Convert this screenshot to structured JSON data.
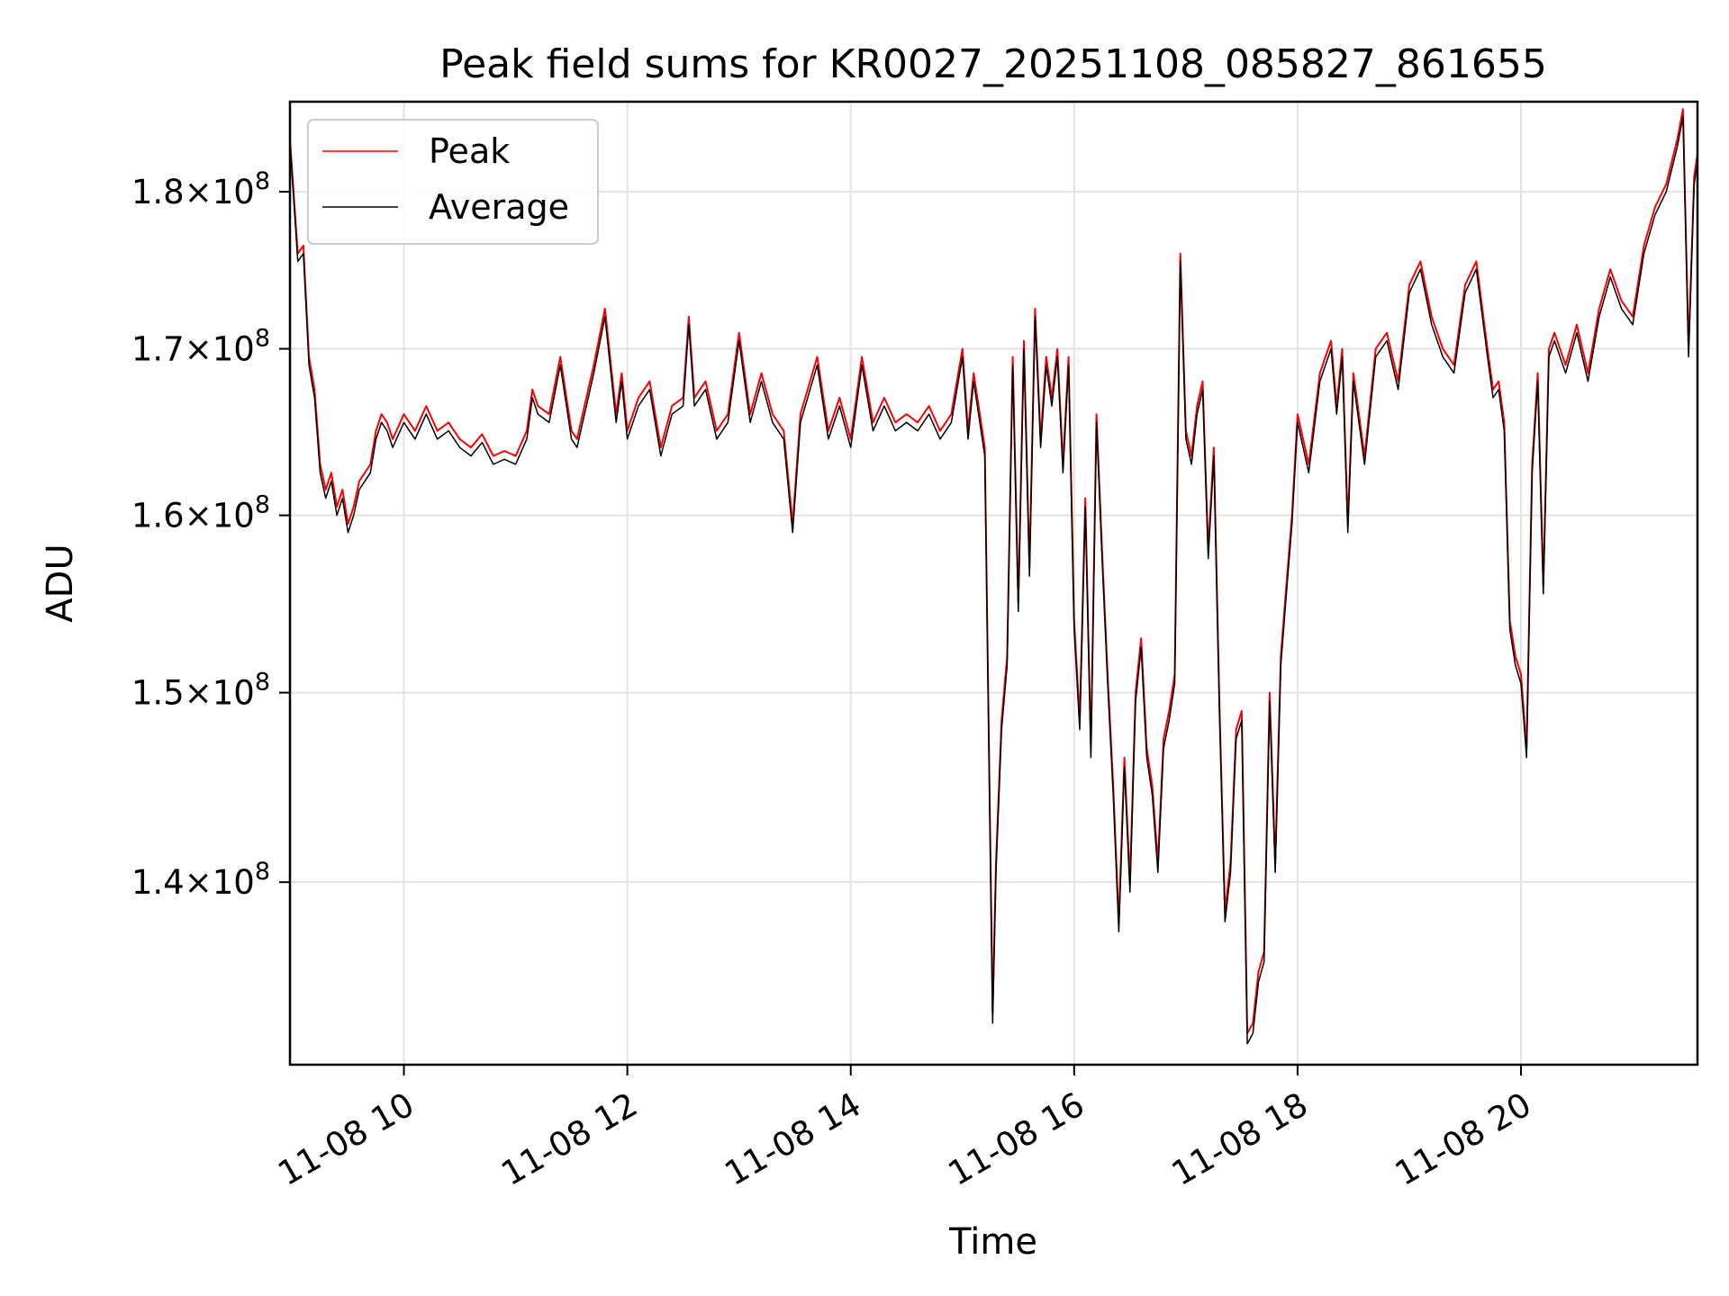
{
  "chart_data": {
    "type": "line",
    "title": "Peak field sums for KR0027_20251108_085827_861655",
    "xlabel": "Time",
    "ylabel": "ADU",
    "y_scale": "log",
    "grid": true,
    "legend_position": "top-left",
    "xlim_hours": [
      8.98,
      21.58
    ],
    "ylim": [
      131000000,
      186000000
    ],
    "x_ticks": [
      {
        "value": 10,
        "label": "11-08 10"
      },
      {
        "value": 12,
        "label": "11-08 12"
      },
      {
        "value": 14,
        "label": "11-08 14"
      },
      {
        "value": 16,
        "label": "11-08 16"
      },
      {
        "value": 18,
        "label": "11-08 18"
      },
      {
        "value": 20,
        "label": "11-08 20"
      }
    ],
    "y_ticks": [
      {
        "value": 140000000,
        "mantissa": "1.4",
        "exponent": "8"
      },
      {
        "value": 150000000,
        "mantissa": "1.5",
        "exponent": "8"
      },
      {
        "value": 160000000,
        "mantissa": "1.6",
        "exponent": "8"
      },
      {
        "value": 170000000,
        "mantissa": "1.7",
        "exponent": "8"
      },
      {
        "value": 180000000,
        "mantissa": "1.8",
        "exponent": "8"
      }
    ],
    "x_hours": [
      8.98,
      9.05,
      9.1,
      9.15,
      9.2,
      9.25,
      9.3,
      9.35,
      9.4,
      9.45,
      9.5,
      9.55,
      9.6,
      9.65,
      9.7,
      9.75,
      9.8,
      9.85,
      9.9,
      10.0,
      10.1,
      10.2,
      10.3,
      10.4,
      10.5,
      10.6,
      10.7,
      10.8,
      10.9,
      11.0,
      11.1,
      11.15,
      11.2,
      11.3,
      11.4,
      11.5,
      11.55,
      11.6,
      11.7,
      11.8,
      11.9,
      11.95,
      12.0,
      12.1,
      12.2,
      12.3,
      12.4,
      12.5,
      12.55,
      12.6,
      12.7,
      12.8,
      12.9,
      13.0,
      13.1,
      13.2,
      13.3,
      13.4,
      13.48,
      13.55,
      13.7,
      13.8,
      13.9,
      14.0,
      14.1,
      14.2,
      14.3,
      14.4,
      14.5,
      14.6,
      14.7,
      14.8,
      14.9,
      15.0,
      15.05,
      15.1,
      15.2,
      15.27,
      15.3,
      15.35,
      15.4,
      15.45,
      15.5,
      15.55,
      15.6,
      15.65,
      15.7,
      15.75,
      15.8,
      15.85,
      15.9,
      15.95,
      16.0,
      16.05,
      16.1,
      16.15,
      16.2,
      16.25,
      16.3,
      16.35,
      16.4,
      16.45,
      16.5,
      16.55,
      16.6,
      16.65,
      16.7,
      16.75,
      16.8,
      16.85,
      16.9,
      16.95,
      17.0,
      17.05,
      17.1,
      17.15,
      17.2,
      17.25,
      17.3,
      17.35,
      17.4,
      17.45,
      17.5,
      17.55,
      17.6,
      17.65,
      17.7,
      17.75,
      17.8,
      17.85,
      17.9,
      17.95,
      18.0,
      18.1,
      18.2,
      18.3,
      18.35,
      18.4,
      18.45,
      18.5,
      18.6,
      18.7,
      18.8,
      18.9,
      19.0,
      19.1,
      19.2,
      19.3,
      19.4,
      19.5,
      19.6,
      19.7,
      19.75,
      19.8,
      19.85,
      19.9,
      19.95,
      20.0,
      20.05,
      20.1,
      20.15,
      20.2,
      20.25,
      20.3,
      20.4,
      20.5,
      20.6,
      20.7,
      20.8,
      20.9,
      21.0,
      21.1,
      21.2,
      21.3,
      21.4,
      21.45,
      21.5,
      21.55,
      21.58
    ],
    "series": [
      {
        "name": "Peak",
        "color": "#ff0000",
        "values": [
          183.5,
          176.0,
          176.5,
          169.5,
          167.5,
          163.0,
          161.5,
          162.5,
          160.5,
          161.5,
          159.5,
          160.5,
          162.0,
          162.5,
          163.0,
          165.0,
          166.0,
          165.5,
          164.5,
          166.0,
          165.0,
          166.5,
          165.0,
          165.5,
          164.5,
          164.0,
          164.8,
          163.5,
          163.8,
          163.5,
          165.0,
          167.5,
          166.5,
          166.0,
          169.5,
          165.0,
          164.5,
          166.0,
          169.0,
          172.5,
          166.0,
          168.5,
          165.0,
          167.0,
          168.0,
          164.0,
          166.5,
          167.0,
          172.0,
          167.0,
          168.0,
          165.0,
          166.0,
          171.0,
          166.0,
          168.5,
          166.0,
          165.0,
          159.5,
          166.0,
          169.5,
          165.0,
          167.0,
          164.5,
          169.5,
          165.5,
          167.0,
          165.5,
          166.0,
          165.5,
          166.5,
          165.0,
          166.0,
          170.0,
          165.0,
          168.5,
          164.0,
          133.5,
          141.0,
          148.5,
          152.0,
          169.5,
          155.0,
          170.5,
          157.0,
          172.5,
          164.5,
          169.5,
          167.0,
          170.0,
          163.0,
          169.5,
          154.0,
          148.5,
          161.0,
          147.0,
          166.0,
          158.0,
          151.0,
          145.0,
          138.0,
          146.5,
          140.0,
          150.0,
          153.0,
          147.0,
          145.0,
          141.0,
          147.5,
          149.0,
          151.0,
          176.0,
          165.0,
          163.5,
          166.5,
          168.0,
          158.0,
          164.0,
          149.5,
          138.5,
          141.0,
          148.0,
          149.0,
          132.5,
          133.0,
          135.5,
          136.5,
          150.0,
          141.0,
          152.0,
          156.0,
          160.0,
          166.0,
          163.0,
          168.5,
          170.5,
          166.5,
          170.0,
          159.5,
          168.5,
          163.5,
          170.0,
          171.0,
          168.0,
          174.0,
          175.5,
          172.0,
          170.0,
          169.0,
          174.0,
          175.5,
          170.0,
          167.5,
          168.0,
          165.5,
          154.0,
          152.0,
          151.0,
          147.0,
          163.0,
          168.5,
          156.0,
          170.0,
          171.0,
          169.0,
          171.5,
          168.5,
          172.5,
          175.0,
          173.0,
          172.0,
          176.5,
          179.0,
          180.5,
          183.5,
          185.5,
          170.0,
          181.0,
          182.5
        ]
      },
      {
        "name": "Average",
        "color": "#000000",
        "values": [
          183.2,
          175.5,
          176.0,
          169.0,
          167.0,
          162.5,
          161.0,
          162.0,
          160.0,
          161.0,
          159.0,
          160.0,
          161.5,
          162.0,
          162.5,
          164.5,
          165.5,
          165.0,
          164.0,
          165.5,
          164.5,
          166.0,
          164.5,
          165.0,
          164.0,
          163.5,
          164.3,
          163.0,
          163.3,
          163.0,
          164.5,
          167.0,
          166.0,
          165.5,
          169.0,
          164.5,
          164.0,
          165.5,
          168.5,
          172.0,
          165.5,
          168.0,
          164.5,
          166.5,
          167.5,
          163.5,
          166.0,
          166.5,
          171.5,
          166.5,
          167.5,
          164.5,
          165.5,
          170.5,
          165.5,
          168.0,
          165.5,
          164.5,
          159.0,
          165.5,
          169.0,
          164.5,
          166.5,
          164.0,
          169.0,
          165.0,
          166.5,
          165.0,
          165.5,
          165.0,
          166.0,
          164.5,
          165.5,
          169.5,
          164.5,
          168.0,
          163.5,
          133.0,
          140.5,
          148.0,
          151.5,
          169.0,
          154.5,
          170.0,
          156.5,
          172.0,
          164.0,
          169.0,
          166.5,
          169.5,
          162.5,
          169.0,
          153.5,
          148.0,
          160.5,
          146.5,
          165.5,
          157.5,
          150.5,
          144.5,
          137.5,
          146.0,
          139.5,
          149.5,
          152.5,
          146.5,
          144.5,
          140.5,
          147.0,
          148.5,
          150.5,
          175.5,
          164.5,
          163.0,
          166.0,
          167.5,
          157.5,
          163.5,
          149.0,
          138.0,
          140.5,
          147.5,
          148.5,
          132.0,
          132.5,
          135.0,
          136.0,
          149.5,
          140.5,
          151.5,
          155.5,
          159.5,
          165.5,
          162.5,
          168.0,
          170.0,
          166.0,
          169.5,
          159.0,
          168.0,
          163.0,
          169.5,
          170.5,
          167.5,
          173.5,
          175.0,
          171.5,
          169.5,
          168.5,
          173.5,
          175.0,
          169.5,
          167.0,
          167.5,
          165.0,
          153.5,
          151.5,
          150.5,
          146.5,
          162.5,
          168.0,
          155.5,
          169.5,
          170.5,
          168.5,
          171.0,
          168.0,
          172.0,
          174.5,
          172.5,
          171.5,
          176.0,
          178.5,
          180.0,
          183.0,
          185.0,
          169.5,
          180.5,
          182.0
        ]
      }
    ]
  }
}
